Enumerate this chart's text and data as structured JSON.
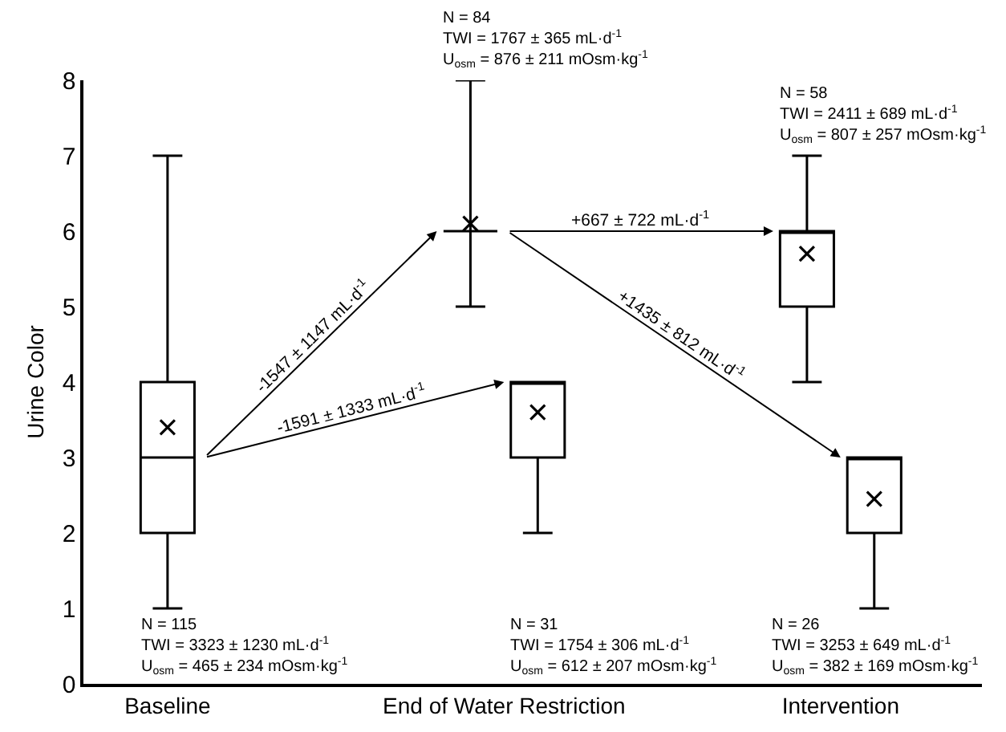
{
  "chart_data": {
    "type": "box",
    "ylabel": "Urine Color",
    "categories": [
      "Baseline",
      "End of Water Restriction",
      "Intervention"
    ],
    "ylim": [
      0,
      8
    ],
    "yticks": [
      0,
      1,
      2,
      3,
      4,
      5,
      6,
      7,
      8
    ],
    "series": [
      {
        "color": "#000000",
        "boxes": [
          {
            "low": 1,
            "q1": 2,
            "median": 3,
            "q3": 4,
            "high": 7,
            "mean": 3.4
          },
          {
            "low": 5,
            "q1": 6,
            "median": 6,
            "q3": 6,
            "high": 8,
            "mean": 6.1
          },
          {
            "low": 4,
            "q1": 5,
            "median": 6,
            "q3": 6,
            "high": 7,
            "mean": 5.7
          }
        ]
      },
      {
        "color": "#000000",
        "boxes": [
          null,
          {
            "low": 2,
            "q1": 3,
            "median": 4,
            "q3": 4,
            "high": 4,
            "mean": 3.6
          },
          {
            "low": 1,
            "q1": 2,
            "median": 3,
            "q3": 3,
            "high": 3,
            "mean": 2.45
          }
        ]
      }
    ],
    "annotations": [
      "N = 115\nTWI = 3323 ± 1230 mL·d$^{-1}$\nU$_{osm}$ = 465 ± 234 mOsm·kg$^{-1}$",
      "N = 84\nTWI = 1767 ± 365 mL·d$^{-1}$\nU$_{osm}$ = 876 ± 211 mOsm·kg$^{-1}$",
      "N = 58\nTWI = 2411 ± 689 mL·d$^{-1}$\nU$_{osm}$ = 807 ± 257 mOsm·kg$^{-1}$",
      "N = 31\nTWI = 1754 ± 306 mL·d$^{-1}$\nU$_{osm}$ = 612 ± 207 mOsm·kg$^{-1}$",
      "N = 26\nTWI = 3253 ± 649 mL·d$^{-1}$\nU$_{osm}$ = 382 ± 169 mOsm·kg$^{-1}$",
      "-1547 ± 1147 mL·d$^{-1}$",
      "+667 ± 722 mL·d$^{-1}$",
      "-1591 ± 1333 mL·d$^{-1}$",
      "+1435 ± 812 mL·d$^{-1}$"
    ]
  }
}
